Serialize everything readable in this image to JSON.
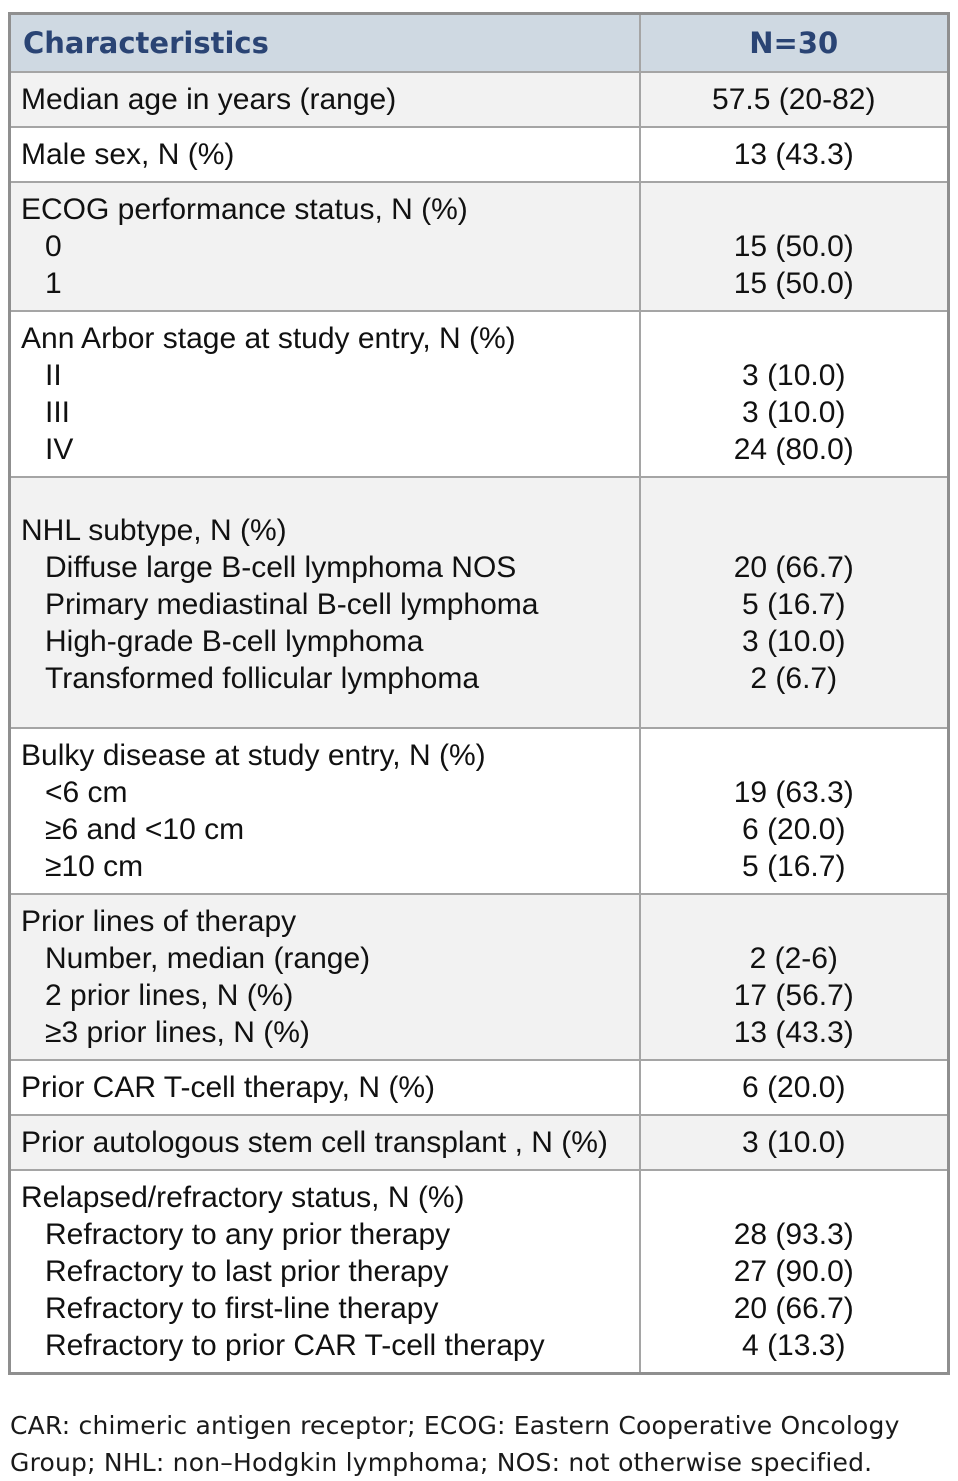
{
  "table": {
    "header": {
      "characteristics": "Characteristics",
      "n": "N=30"
    },
    "rows": [
      {
        "lines": [
          {
            "label": "Median age in years (range)",
            "indent": false,
            "value": "57.5 (20-82)"
          }
        ]
      },
      {
        "lines": [
          {
            "label": "Male sex, N (%)",
            "indent": false,
            "value": "13 (43.3)"
          }
        ]
      },
      {
        "lines": [
          {
            "label": "ECOG performance status, N (%)",
            "indent": false,
            "value": ""
          },
          {
            "label": "0",
            "indent": true,
            "value": "15 (50.0)"
          },
          {
            "label": "1",
            "indent": true,
            "value": "15 (50.0)"
          }
        ]
      },
      {
        "lines": [
          {
            "label": "Ann Arbor stage at study entry, N (%)",
            "indent": false,
            "value": ""
          },
          {
            "label": "II",
            "indent": true,
            "value": "3 (10.0)"
          },
          {
            "label": "III",
            "indent": true,
            "value": "3 (10.0)"
          },
          {
            "label": "IV",
            "indent": true,
            "value": "24 (80.0)"
          }
        ]
      },
      {
        "lines": [
          {
            "label": "NHL subtype, N (%)",
            "indent": false,
            "value": ""
          },
          {
            "label": "Diffuse large B-cell lymphoma NOS",
            "indent": true,
            "value": "20 (66.7)"
          },
          {
            "label": "Primary mediastinal B-cell lymphoma",
            "indent": true,
            "value": "5 (16.7)"
          },
          {
            "label": "High-grade B-cell lymphoma",
            "indent": true,
            "value": "3 (10.0)"
          },
          {
            "label": "Transformed follicular lymphoma",
            "indent": true,
            "value": "2 (6.7)"
          }
        ]
      },
      {
        "lines": [
          {
            "label": "Bulky disease at study entry, N (%)",
            "indent": false,
            "value": ""
          },
          {
            "label": "<6 cm",
            "indent": true,
            "value": "19 (63.3)"
          },
          {
            "label": "≥6 and <10 cm",
            "indent": true,
            "value": "6 (20.0)"
          },
          {
            "label": "≥10 cm",
            "indent": true,
            "value": "5 (16.7)"
          }
        ]
      },
      {
        "lines": [
          {
            "label": "Prior lines of therapy",
            "indent": false,
            "value": ""
          },
          {
            "label": "Number, median (range)",
            "indent": true,
            "value": "2 (2-6)"
          },
          {
            "label": "2 prior lines, N (%)",
            "indent": true,
            "value": "17 (56.7)"
          },
          {
            "label": "≥3 prior lines, N (%)",
            "indent": true,
            "value": "13 (43.3)"
          }
        ]
      },
      {
        "lines": [
          {
            "label": "Prior CAR T-cell therapy, N (%)",
            "indent": false,
            "value": "6 (20.0)"
          }
        ]
      },
      {
        "lines": [
          {
            "label": "Prior autologous stem cell transplant , N (%)",
            "indent": false,
            "value": "3 (10.0)"
          }
        ]
      },
      {
        "lines": [
          {
            "label": "Relapsed/refractory status, N (%)",
            "indent": false,
            "value": ""
          },
          {
            "label": "Refractory to any prior therapy",
            "indent": true,
            "value": "28 (93.3)"
          },
          {
            "label": "Refractory to last prior therapy",
            "indent": true,
            "value": "27 (90.0)"
          },
          {
            "label": "Refractory to first-line therapy",
            "indent": true,
            "value": "20 (66.7)"
          },
          {
            "label": "Refractory to prior CAR T-cell therapy",
            "indent": true,
            "value": "4 (13.3)"
          }
        ]
      }
    ]
  },
  "footnote": {
    "line1": "CAR: chimeric antigen receptor; ECOG: Eastern Cooperative Oncology",
    "line2": "Group; NHL: non–Hodgkin lymphoma; NOS: not otherwise specified."
  },
  "colors": {
    "header_bg": "#cfd9e2",
    "header_text": "#2a4474",
    "row_alt_bg": "#f2f2f2",
    "border": "#a5a5a5"
  }
}
